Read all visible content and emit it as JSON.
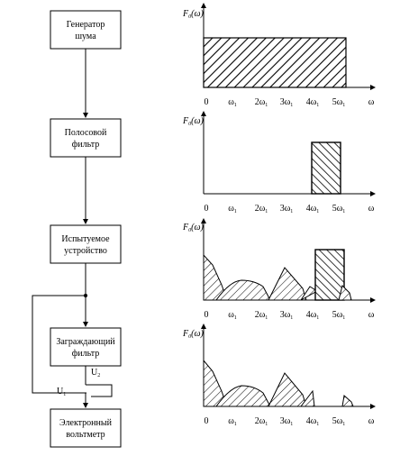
{
  "blocks": [
    {
      "id": "generator",
      "lines": [
        "Генератор",
        "шума"
      ]
    },
    {
      "id": "bandpass",
      "lines": [
        "Полосовой",
        "фильтр"
      ]
    },
    {
      "id": "dut",
      "lines": [
        "Испытуемое",
        "устройство"
      ]
    },
    {
      "id": "notch",
      "lines": [
        "Заграждающий",
        "фильтр"
      ]
    },
    {
      "id": "voltmeter",
      "lines": [
        "Электронный",
        "вольтметр"
      ]
    }
  ],
  "switch_labels": {
    "u1": "U",
    "u1_sub": "1",
    "u2": "U",
    "u2_sub": "2"
  },
  "spectra": {
    "y_label_main": "F",
    "y_label_sub": "0",
    "y_label_arg": "(ω)",
    "x_ticks": [
      {
        "pre": "0",
        "sub": ""
      },
      {
        "pre": "ω",
        "sub": "1"
      },
      {
        "pre": "2ω",
        "sub": "1"
      },
      {
        "pre": "3ω",
        "sub": "1"
      },
      {
        "pre": "4ω",
        "sub": "1"
      },
      {
        "pre": "5ω",
        "sub": "1"
      },
      {
        "pre": "ω",
        "sub": ""
      }
    ]
  },
  "colors": {
    "line": "#000000",
    "background": "#ffffff"
  }
}
